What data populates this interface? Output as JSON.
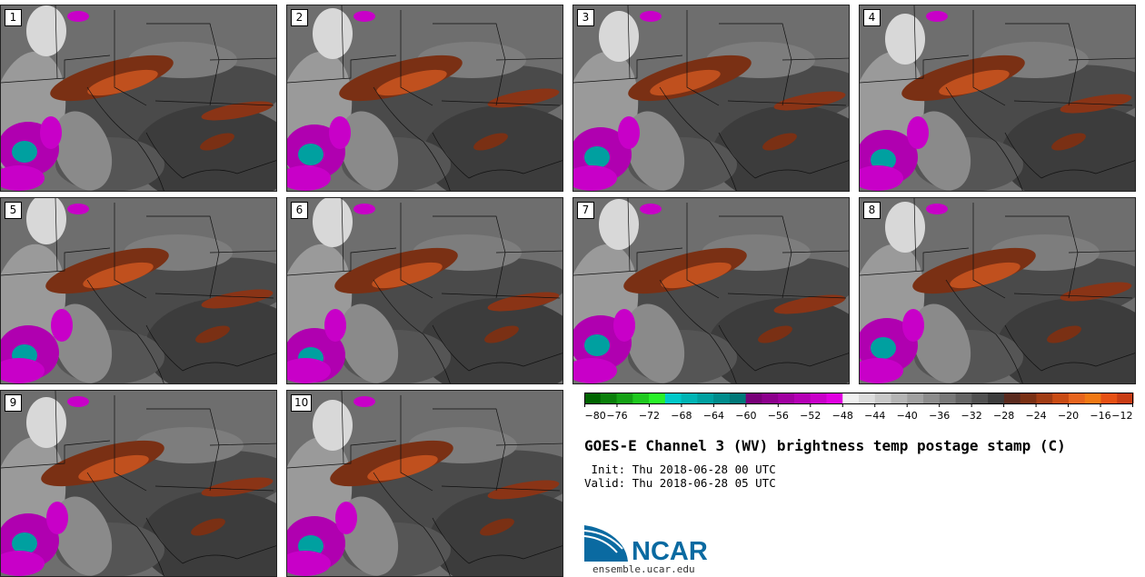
{
  "panels": [
    "1",
    "2",
    "3",
    "4",
    "5",
    "6",
    "7",
    "8",
    "9",
    "10"
  ],
  "colorbar": {
    "colors": [
      "#006400",
      "#0a7f0a",
      "#14a014",
      "#1ec81e",
      "#28f028",
      "#00c8c8",
      "#00b4b4",
      "#00a0a0",
      "#008c8c",
      "#007878",
      "#780078",
      "#8c008c",
      "#a000a0",
      "#b400b4",
      "#c800c8",
      "#e000e0",
      "#f0f0f0",
      "#dcdcdc",
      "#c8c8c8",
      "#b4b4b4",
      "#a0a0a0",
      "#8c8c8c",
      "#787878",
      "#646464",
      "#505050",
      "#3c3c3c",
      "#5a2a1e",
      "#7a3014",
      "#a03c14",
      "#c84b14",
      "#e6641e",
      "#f07814",
      "#e65014",
      "#c83c14"
    ],
    "tick_labels": [
      "−80",
      "−76",
      "−72",
      "−68",
      "−64",
      "−60",
      "−56",
      "−52",
      "−48",
      "−44",
      "−40",
      "−36",
      "−32",
      "−28",
      "−24",
      "−20",
      "−16",
      "−12"
    ],
    "min": -80,
    "max": -12
  },
  "title": "GOES-E Channel 3 (WV) brightness temp postage stamp (C)",
  "init_line": " Init: Thu 2018-06-28 00 UTC",
  "valid_line": "Valid: Thu 2018-06-28 05 UTC",
  "logo": {
    "text": "NCAR",
    "url": "ensemble.ucar.edu",
    "color": "#0a6aa1"
  }
}
